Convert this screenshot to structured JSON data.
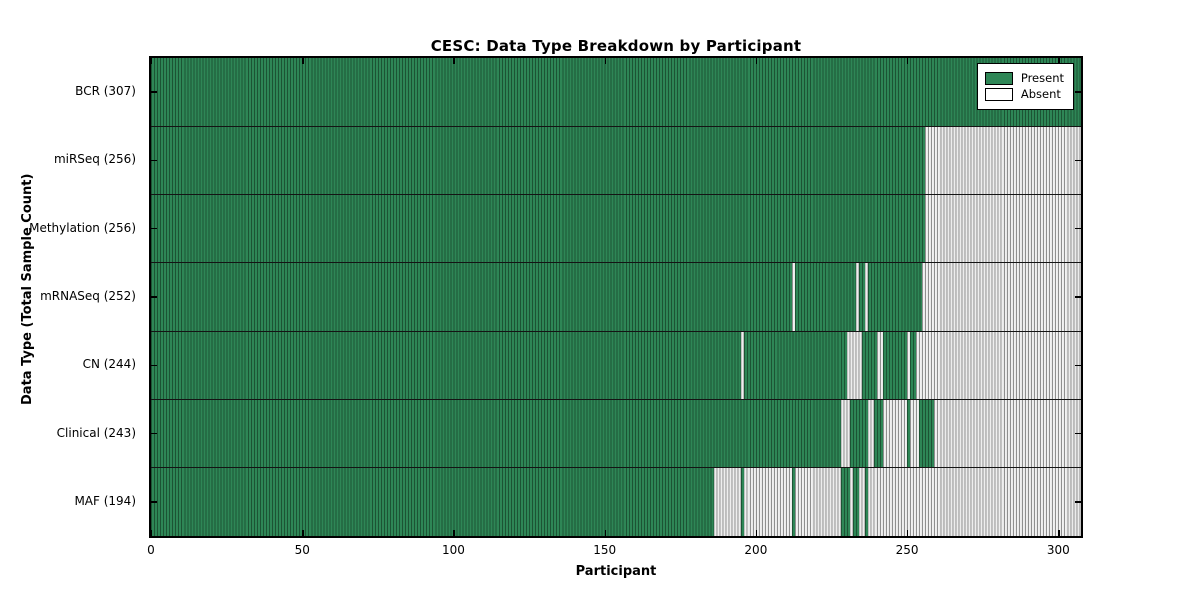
{
  "title": "CESC: Data Type Breakdown by Participant",
  "x_axis": {
    "label": "Participant",
    "ticks": [
      "0",
      "50",
      "100",
      "150",
      "200",
      "250",
      "300"
    ]
  },
  "y_axis": {
    "label": "Data Type (Total Sample Count)"
  },
  "legend": {
    "items": [
      {
        "label": "Present",
        "color": "#2e8656"
      },
      {
        "label": "Absent",
        "color": "#ffffff"
      }
    ]
  },
  "colors": {
    "present_fill": "#2e8656",
    "present_edge": "#1c5434",
    "absent_fill": "#f0f0f0",
    "absent_edge": "#8f8f8f",
    "axis": "#000000",
    "background": "#ffffff"
  },
  "chart_data": {
    "type": "heatmap",
    "title": "CESC: Data Type Breakdown by Participant",
    "xlabel": "Participant",
    "ylabel": "Data Type (Total Sample Count)",
    "legend": [
      "Present",
      "Absent"
    ],
    "legend_position": "upper right",
    "x_domain": [
      0,
      307
    ],
    "x_ticks": [
      0,
      50,
      100,
      150,
      200,
      250,
      300
    ],
    "rows": [
      {
        "label": "BCR (307)",
        "data_type": "BCR",
        "total_sample_count": 307,
        "present_segments": [
          [
            0,
            307
          ]
        ]
      },
      {
        "label": "miRSeq (256)",
        "data_type": "miRSeq",
        "total_sample_count": 256,
        "present_segments": [
          [
            0,
            256
          ]
        ]
      },
      {
        "label": "Methylation (256)",
        "data_type": "Methylation",
        "total_sample_count": 256,
        "present_segments": [
          [
            0,
            256
          ]
        ]
      },
      {
        "label": "mRNASeq (252)",
        "data_type": "mRNASeq",
        "total_sample_count": 252,
        "present_segments": [
          [
            0,
            212
          ],
          [
            213,
            233
          ],
          [
            234,
            236
          ],
          [
            237,
            255
          ]
        ]
      },
      {
        "label": "CN (244)",
        "data_type": "CN",
        "total_sample_count": 244,
        "present_segments": [
          [
            0,
            195
          ],
          [
            196,
            230
          ],
          [
            235,
            240
          ],
          [
            242,
            250
          ],
          [
            251,
            253
          ]
        ]
      },
      {
        "label": "Clinical (243)",
        "data_type": "Clinical",
        "total_sample_count": 243,
        "present_segments": [
          [
            0,
            228
          ],
          [
            231,
            237
          ],
          [
            239,
            242
          ],
          [
            250,
            251
          ],
          [
            254,
            259
          ]
        ]
      },
      {
        "label": "MAF (194)",
        "data_type": "MAF",
        "total_sample_count": 194,
        "present_segments": [
          [
            0,
            186
          ],
          [
            195,
            196
          ],
          [
            212,
            213
          ],
          [
            228,
            231
          ],
          [
            232,
            234
          ],
          [
            236,
            237
          ]
        ]
      }
    ]
  }
}
